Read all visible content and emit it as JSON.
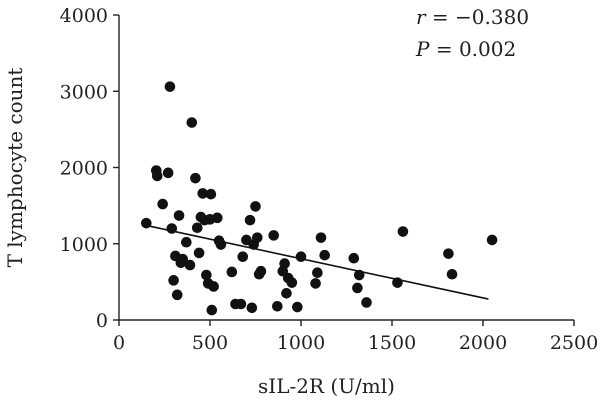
{
  "chart_data": {
    "type": "scatter",
    "title": "",
    "xlabel": "sIL-2R (U/ml)",
    "ylabel": "T lymphocyte count",
    "xlim": [
      0,
      2500
    ],
    "ylim": [
      0,
      4000
    ],
    "xticks": [
      0,
      500,
      1000,
      1500,
      2000,
      2500
    ],
    "yticks": [
      0,
      1000,
      2000,
      3000,
      4000
    ],
    "grid": false,
    "annotations": {
      "r_symbol": "r",
      "r_value": " = −0.380",
      "p_symbol": "P",
      "p_value": " = 0.002"
    },
    "trendline": {
      "x": [
        150,
        2030
      ],
      "y": [
        1240,
        275
      ]
    },
    "series": [
      {
        "points": [
          [
            150,
            1270
          ],
          [
            205,
            1960
          ],
          [
            210,
            1890
          ],
          [
            240,
            1520
          ],
          [
            270,
            1930
          ],
          [
            280,
            3060
          ],
          [
            290,
            1200
          ],
          [
            300,
            520
          ],
          [
            310,
            840
          ],
          [
            320,
            330
          ],
          [
            330,
            1370
          ],
          [
            340,
            750
          ],
          [
            350,
            800
          ],
          [
            370,
            1020
          ],
          [
            390,
            720
          ],
          [
            400,
            2590
          ],
          [
            420,
            1860
          ],
          [
            430,
            1210
          ],
          [
            440,
            880
          ],
          [
            450,
            1350
          ],
          [
            460,
            1660
          ],
          [
            470,
            1310
          ],
          [
            480,
            590
          ],
          [
            490,
            480
          ],
          [
            500,
            1320
          ],
          [
            505,
            1650
          ],
          [
            510,
            130
          ],
          [
            520,
            440
          ],
          [
            540,
            1340
          ],
          [
            550,
            1040
          ],
          [
            560,
            990
          ],
          [
            620,
            630
          ],
          [
            640,
            210
          ],
          [
            670,
            210
          ],
          [
            680,
            830
          ],
          [
            700,
            1050
          ],
          [
            720,
            1310
          ],
          [
            730,
            160
          ],
          [
            740,
            990
          ],
          [
            750,
            1490
          ],
          [
            760,
            1080
          ],
          [
            770,
            600
          ],
          [
            780,
            640
          ],
          [
            850,
            1110
          ],
          [
            870,
            180
          ],
          [
            900,
            640
          ],
          [
            910,
            740
          ],
          [
            920,
            350
          ],
          [
            930,
            550
          ],
          [
            950,
            490
          ],
          [
            980,
            170
          ],
          [
            1000,
            830
          ],
          [
            1080,
            480
          ],
          [
            1090,
            620
          ],
          [
            1110,
            1080
          ],
          [
            1130,
            850
          ],
          [
            1290,
            810
          ],
          [
            1310,
            420
          ],
          [
            1320,
            590
          ],
          [
            1360,
            230
          ],
          [
            1530,
            490
          ],
          [
            1560,
            1160
          ],
          [
            1810,
            870
          ],
          [
            1830,
            600
          ],
          [
            2050,
            1050
          ]
        ]
      }
    ]
  }
}
